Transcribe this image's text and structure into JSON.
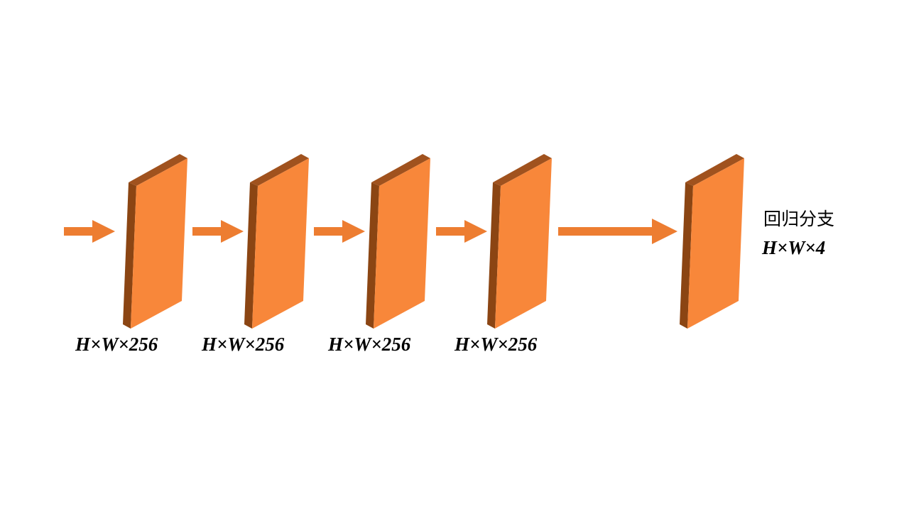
{
  "diagram": {
    "layers": [
      {
        "label": "H×W×256"
      },
      {
        "label": "H×W×256"
      },
      {
        "label": "H×W×256"
      },
      {
        "label": "H×W×256"
      },
      {
        "label": ""
      }
    ],
    "output": {
      "title": "回归分支",
      "dims": "H×W×4"
    },
    "colors": {
      "face": "#F8873A",
      "side": "#8B4513",
      "arrow": "#ED7D31"
    }
  }
}
